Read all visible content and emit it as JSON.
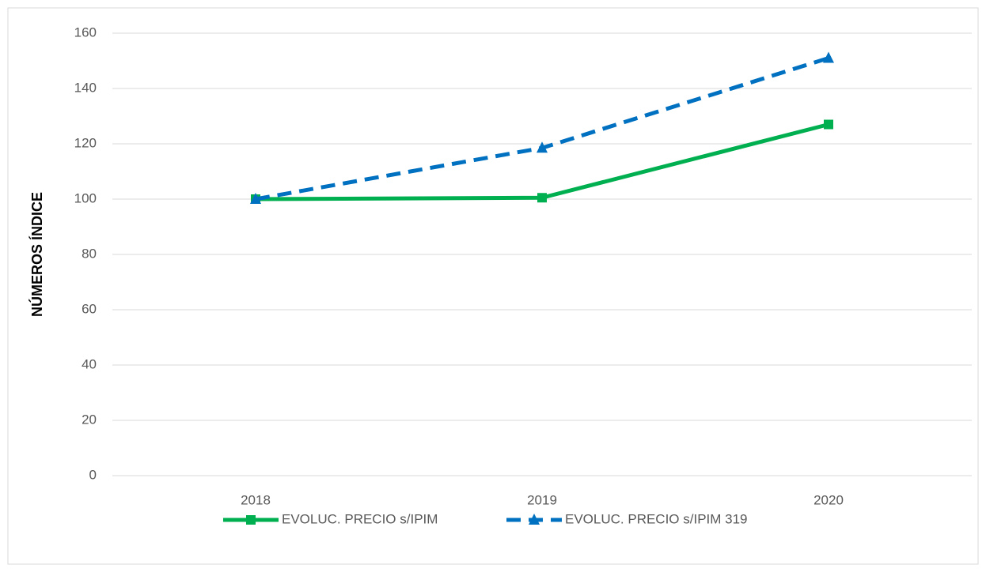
{
  "chart_data": {
    "type": "line",
    "y_label": "NÚMEROS ÍNDICE",
    "categories": [
      "2018",
      "2019",
      "2020"
    ],
    "series": [
      {
        "name": "EVOLUC. PRECIO s/IPIM",
        "color": "#00b050",
        "marker": "square",
        "dash": false,
        "values": [
          100,
          100.5,
          127
        ]
      },
      {
        "name": "EVOLUC. PRECIO s/IPIM 319",
        "color": "#0070c0",
        "marker": "triangle",
        "dash": true,
        "values": [
          100,
          118.5,
          151
        ]
      }
    ],
    "ylim": [
      0,
      160
    ],
    "yticks": [
      0,
      20,
      40,
      60,
      80,
      100,
      120,
      140,
      160
    ],
    "grid": true
  }
}
